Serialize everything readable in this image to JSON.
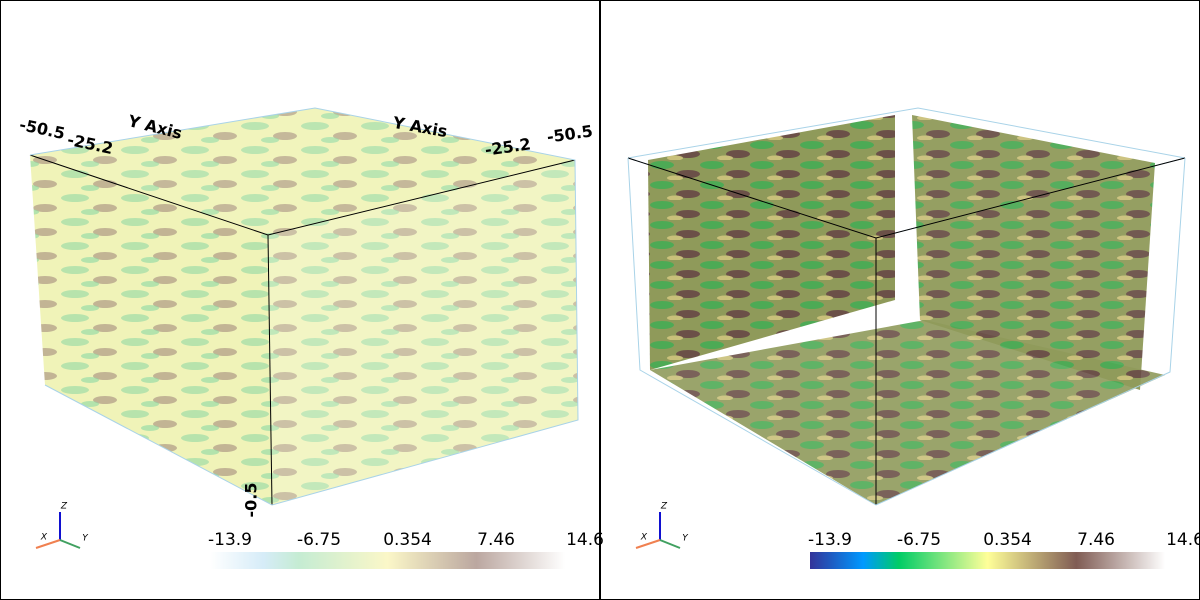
{
  "panels": [
    {
      "axis_labels": [
        "Y Axis",
        "Y Axis"
      ],
      "tick_labels": [
        "-50.5",
        "-25.2",
        "-25.2",
        "-50.5",
        "-0.5"
      ],
      "colorbar": {
        "clim": [
          -13.9,
          14.6
        ],
        "ticks": [
          -13.9,
          -6.75,
          0.354,
          7.46,
          14.6
        ],
        "style": "faded"
      },
      "orientation": [
        "X",
        "Y",
        "Z"
      ]
    },
    {
      "colorbar": {
        "clim": [
          -13.9,
          14.6
        ],
        "ticks": [
          -13.9,
          -6.75,
          0.354,
          7.46,
          14.6
        ],
        "style": "solid"
      },
      "orientation": [
        "X",
        "Y",
        "Z"
      ]
    }
  ]
}
